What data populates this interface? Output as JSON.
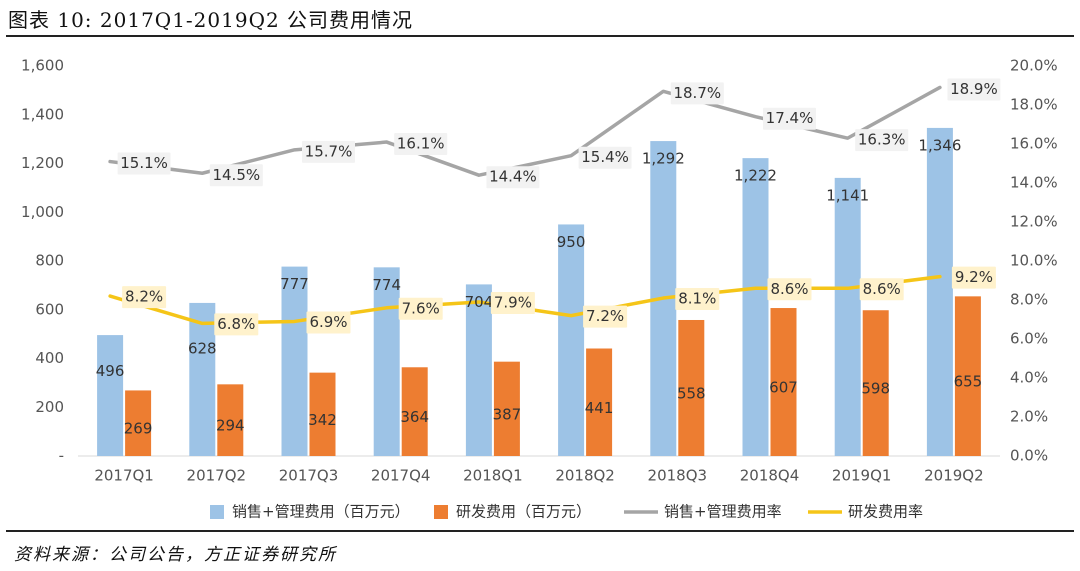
{
  "figure": {
    "title": "图表 10:  2017Q1-2019Q2 公司费用情况",
    "source": "资料来源：公司公告，方正证券研究所"
  },
  "chart_data": {
    "type": "bar",
    "categories": [
      "2017Q1",
      "2017Q2",
      "2017Q3",
      "2017Q4",
      "2018Q1",
      "2018Q2",
      "2018Q3",
      "2018Q4",
      "2019Q1",
      "2019Q2"
    ],
    "y_left": {
      "min": 0,
      "max": 1600,
      "ticks": [
        "-",
        "200",
        "400",
        "600",
        "800",
        "1,000",
        "1,200",
        "1,400",
        "1,600"
      ]
    },
    "y_right": {
      "min": 0,
      "max": 20,
      "ticks": [
        "0.0%",
        "2.0%",
        "4.0%",
        "6.0%",
        "8.0%",
        "10.0%",
        "12.0%",
        "14.0%",
        "16.0%",
        "18.0%",
        "20.0%"
      ]
    },
    "bar_series": [
      {
        "name": "销售+管理费用（百万元）",
        "color": "#9DC3E6",
        "values": [
          496,
          628,
          777,
          774,
          704,
          950,
          1292,
          1222,
          1141,
          1346
        ],
        "labels": [
          "496",
          "628",
          "777",
          "774",
          "704",
          "950",
          "1,292",
          "1,222",
          "1,141",
          "1,346"
        ]
      },
      {
        "name": "研发费用（百万元）",
        "color": "#ED7D31",
        "values": [
          269,
          294,
          342,
          364,
          387,
          441,
          558,
          607,
          598,
          655
        ],
        "labels": [
          "269",
          "294",
          "342",
          "364",
          "387",
          "441",
          "558",
          "607",
          "598",
          "655"
        ]
      }
    ],
    "line_series": [
      {
        "name": "销售+管理费用率",
        "color": "#A5A5A5",
        "label_bg": "#F2F2F2",
        "values": [
          15.1,
          14.5,
          15.7,
          16.1,
          14.4,
          15.4,
          18.7,
          17.4,
          16.3,
          18.9
        ],
        "labels": [
          "15.1%",
          "14.5%",
          "15.7%",
          "16.1%",
          "14.4%",
          "15.4%",
          "18.7%",
          "17.4%",
          "16.3%",
          "18.9%"
        ]
      },
      {
        "name": "研发费用率",
        "color": "#F5C518",
        "label_bg": "#FFF2CC",
        "values": [
          8.2,
          6.8,
          6.9,
          7.6,
          7.9,
          7.2,
          8.1,
          8.6,
          8.6,
          9.2
        ],
        "labels": [
          "8.2%",
          "6.8%",
          "6.9%",
          "7.6%",
          "7.9%",
          "7.2%",
          "8.1%",
          "8.6%",
          "8.6%",
          "9.2%"
        ]
      }
    ],
    "grid": false,
    "legend_position": "bottom"
  }
}
